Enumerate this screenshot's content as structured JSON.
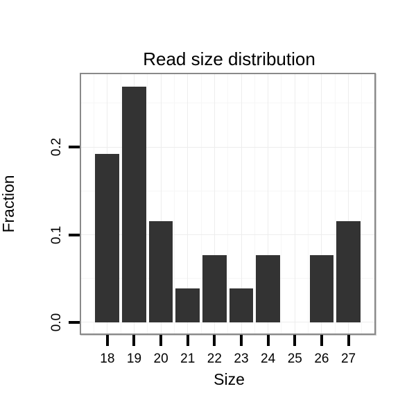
{
  "chart_data": {
    "type": "bar",
    "title": "Read size distribution",
    "xlabel": "Size",
    "ylabel": "Fraction",
    "categories": [
      18,
      19,
      20,
      21,
      22,
      23,
      24,
      25,
      26,
      27
    ],
    "values": [
      0.1923,
      0.2692,
      0.1154,
      0.0385,
      0.0769,
      0.0385,
      0.0769,
      0,
      0.0769,
      0.1154
    ],
    "x_tick_labels": [
      "18",
      "19",
      "20",
      "21",
      "22",
      "23",
      "24",
      "25",
      "26",
      "27"
    ],
    "y_major_ticks": [
      0.0,
      0.1,
      0.2
    ],
    "y_tick_labels": [
      "0.0",
      "0.1",
      "0.2"
    ],
    "y_minor_gridlines": [
      0.05,
      0.15,
      0.25
    ],
    "x_minor_gridlines": [
      17.5,
      18.5,
      19.5,
      20.5,
      21.5,
      22.5,
      23.5,
      24.5,
      25.5,
      26.5,
      27.5
    ],
    "xlim": [
      17.02,
      27.97
    ],
    "ylim": [
      -0.0127,
      0.2831
    ],
    "bar_width_units": 0.9,
    "grid": "major+minor",
    "legend": "none",
    "colors": {
      "bar": "#333333",
      "panel_border": "#898989",
      "grid_major": "#ededed",
      "grid_minor": "#f6f6f6",
      "background": "#ffffff",
      "text": "#000000",
      "tick": "#000000"
    }
  }
}
